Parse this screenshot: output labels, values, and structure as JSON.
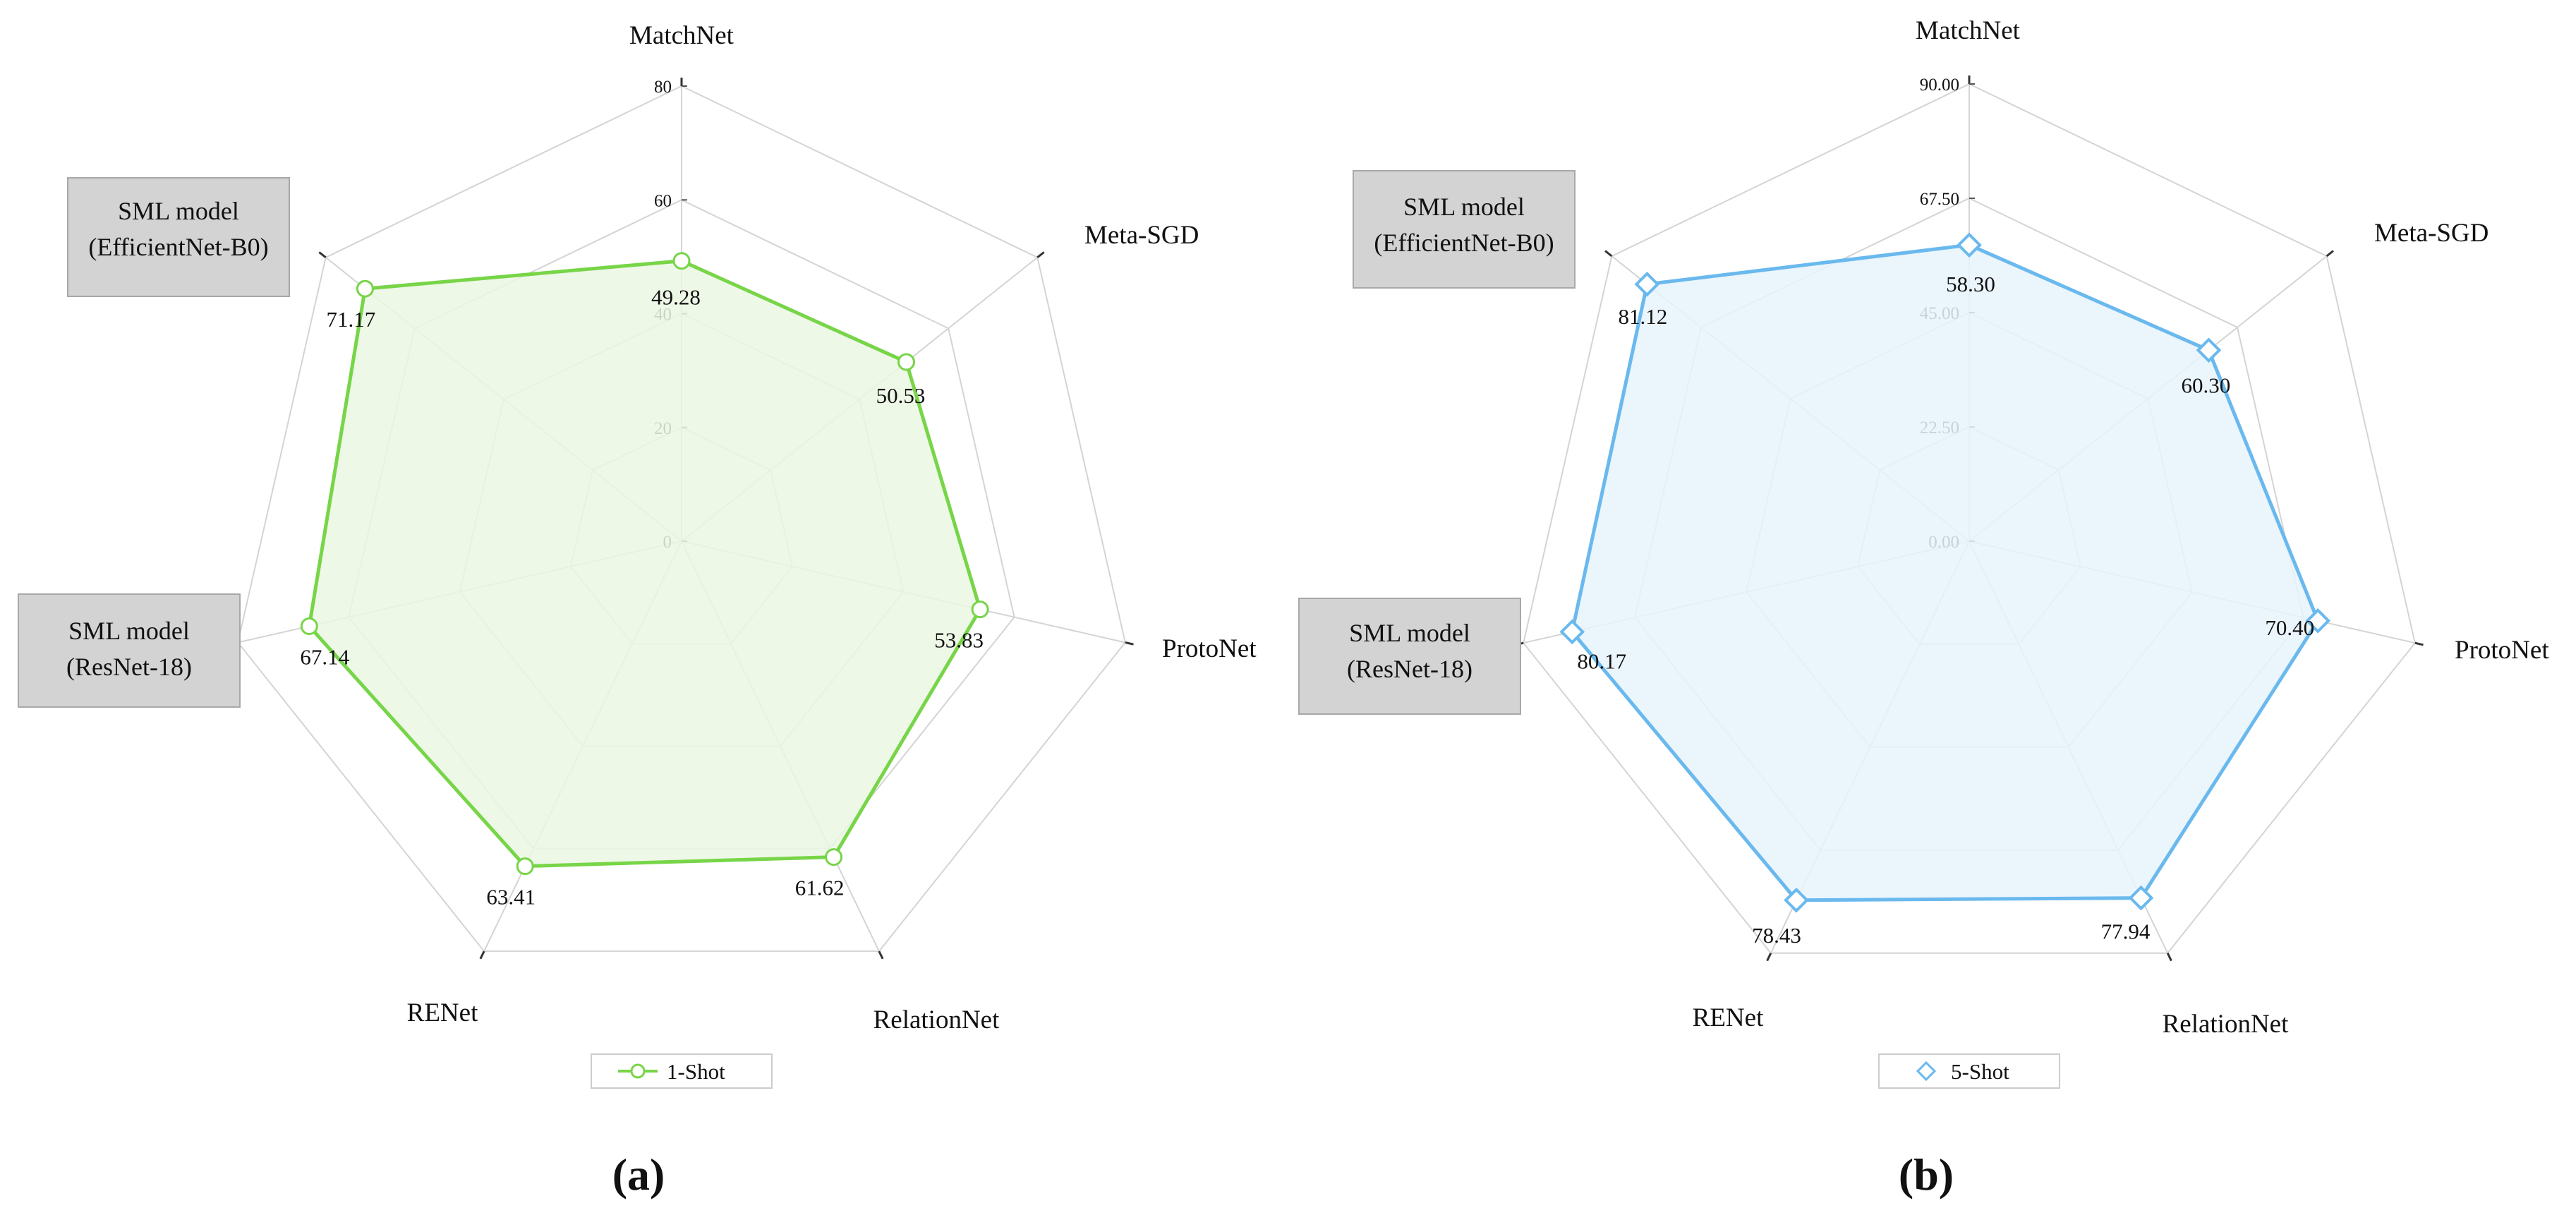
{
  "panel_letters": [
    "(a)",
    "(b)"
  ],
  "boxes": {
    "a_top": [
      "SML model",
      "(EfficientNet-B0)"
    ],
    "a_left": [
      "SML model",
      "(ResNet-18)"
    ],
    "b_top": [
      "SML model",
      "(EfficientNet-B0)"
    ],
    "b_left": [
      "SML model",
      "(ResNet-18)"
    ]
  },
  "colors": {
    "panel_a": {
      "line": "#77d548",
      "fill": "#ebf7e3"
    },
    "panel_b": {
      "line": "#6ab9ee",
      "fill": "#e8f3fc"
    },
    "grid": "#d4d4d4",
    "box_fill": "#d3d3d3"
  },
  "chart_data": [
    {
      "type": "radar",
      "panel": "(a)",
      "axes": [
        "MatchNet",
        "Meta-SGD",
        "ProtoNet",
        "RelationNet",
        "RENet",
        "SML model (ResNet-18)",
        "SML model (EfficientNet-B0)"
      ],
      "axis_labels": [
        "MatchNet",
        "Meta-SGD",
        "ProtoNet",
        "RelationNet",
        "RENet"
      ],
      "ticks": [
        0,
        20,
        40,
        60,
        80
      ],
      "tick_labels": [
        "0",
        "20",
        "40",
        "60",
        "80"
      ],
      "range": [
        0,
        80
      ],
      "series": [
        {
          "name": "1-Shot",
          "marker": "circle",
          "values": [
            49.28,
            50.53,
            53.83,
            61.62,
            63.41,
            67.14,
            71.17
          ]
        }
      ],
      "value_labels": [
        "49.28",
        "50.53",
        "53.83",
        "61.62",
        "63.41",
        "67.14",
        "71.17"
      ],
      "legend": "1-Shot"
    },
    {
      "type": "radar",
      "panel": "(b)",
      "axes": [
        "MatchNet",
        "Meta-SGD",
        "ProtoNet",
        "RelationNet",
        "RENet",
        "SML model (ResNet-18)",
        "SML model (EfficientNet-B0)"
      ],
      "axis_labels": [
        "MatchNet",
        "Meta-SGD",
        "ProtoNet",
        "RelationNet",
        "RENet"
      ],
      "ticks": [
        0,
        22.5,
        45,
        67.5,
        90
      ],
      "tick_labels": [
        "0.00",
        "22.50",
        "45.00",
        "67.50",
        "90.00"
      ],
      "range": [
        0,
        90
      ],
      "series": [
        {
          "name": "5-Shot",
          "marker": "diamond",
          "values": [
            58.3,
            60.3,
            70.4,
            77.94,
            78.43,
            80.17,
            81.12
          ]
        }
      ],
      "value_labels": [
        "58.30",
        "60.30",
        "70.40",
        "77.94",
        "78.43",
        "80.17",
        "81.12"
      ],
      "legend": "5-Shot"
    }
  ]
}
